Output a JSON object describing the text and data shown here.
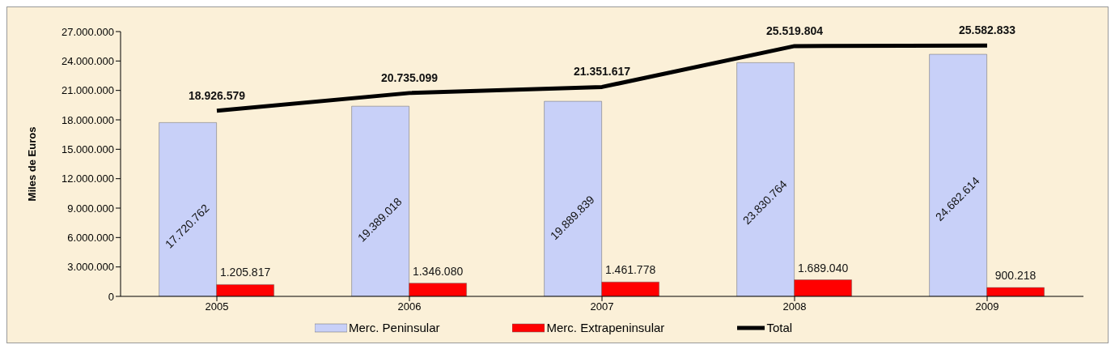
{
  "chart_data": {
    "type": "bar",
    "ylabel": "Miles de Euros",
    "categories": [
      "2005",
      "2006",
      "2007",
      "2008",
      "2009"
    ],
    "series": [
      {
        "name": "Merc. Peninsular",
        "color": "#c8d0f8",
        "values": [
          17720762,
          19389018,
          19889839,
          23830764,
          24682614
        ],
        "value_labels": [
          "17.720.762",
          "19.389.018",
          "19.889.839",
          "23.830.764",
          "24.682.614"
        ]
      },
      {
        "name": "Merc. Extrapeninsular",
        "color": "#ff0000",
        "values": [
          1205817,
          1346080,
          1461778,
          1689040,
          900218
        ],
        "value_labels": [
          "1.205.817",
          "1.346.080",
          "1.461.778",
          "1.689.040",
          "900.218"
        ]
      },
      {
        "name": "Total",
        "type": "line",
        "color": "#000000",
        "values": [
          18926579,
          20735099,
          21351617,
          25519804,
          25582833
        ],
        "value_labels": [
          "18.926.579",
          "20.735.099",
          "21.351.617",
          "25.519.804",
          "25.582.833"
        ]
      }
    ],
    "ylim": [
      0,
      27000000
    ],
    "yticks": [
      0,
      {
        "value": 3000000,
        "label": "3.000.000"
      },
      {
        "value": 6000000,
        "label": "6.000.000"
      },
      {
        "value": 9000000,
        "label": "9.000.000"
      },
      {
        "value": 12000000,
        "label": "12.000.000"
      },
      {
        "value": 15000000,
        "label": "15.000.000"
      },
      {
        "value": 18000000,
        "label": "18.000.000"
      },
      {
        "value": 21000000,
        "label": "21.000.000"
      },
      {
        "value": 24000000,
        "label": "24.000.000"
      },
      {
        "value": 27000000,
        "label": "27.000.000"
      }
    ],
    "legend": "bottom",
    "marker": "none"
  }
}
